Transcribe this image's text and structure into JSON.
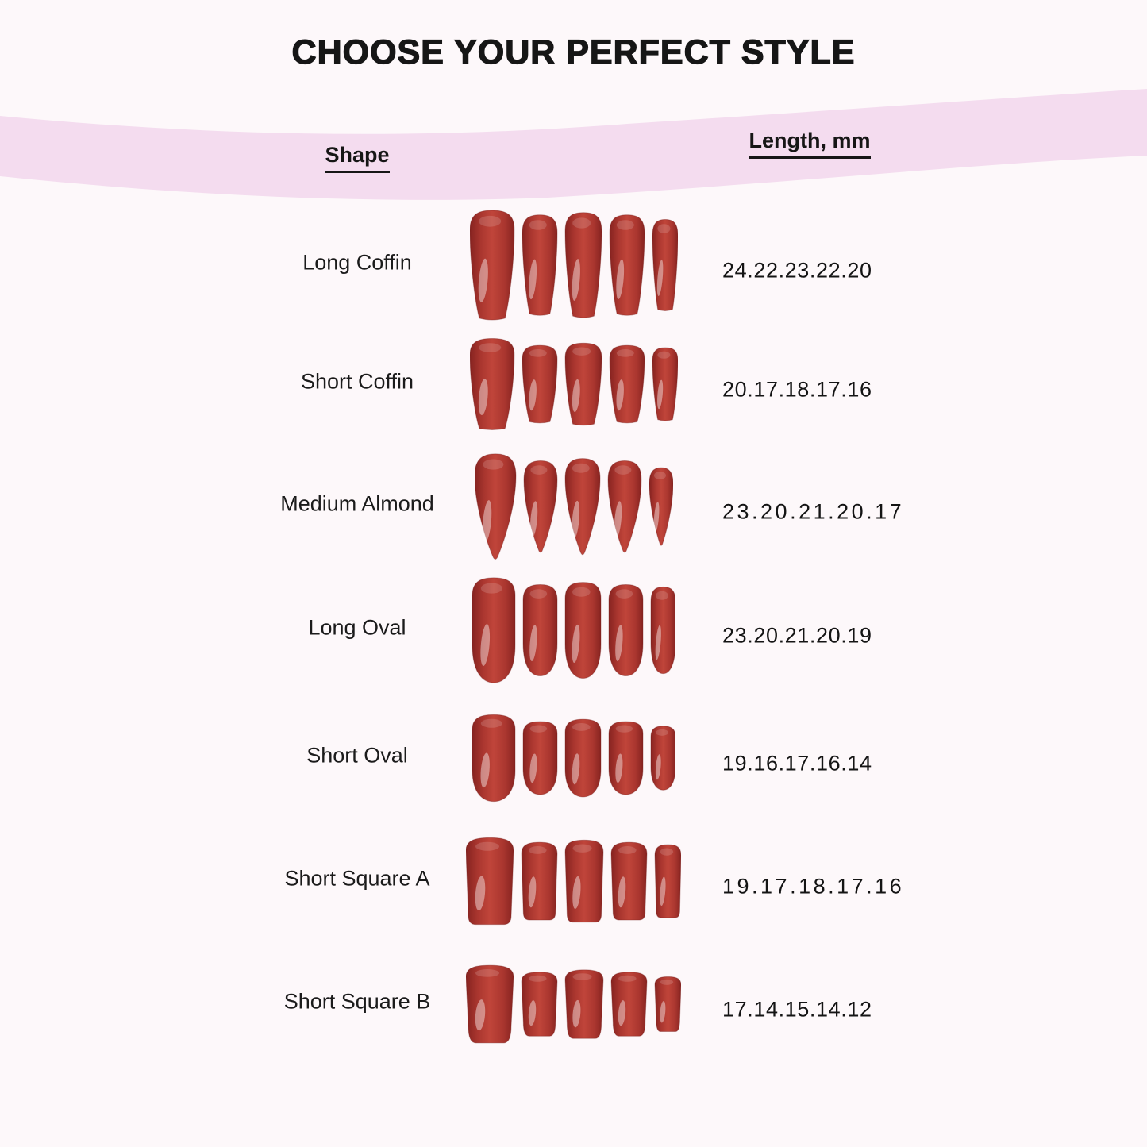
{
  "chart_data": {
    "type": "table",
    "title": "CHOOSE YOUR PERFECT STYLE",
    "columns": [
      "Shape",
      "Length, mm"
    ],
    "rows": [
      {
        "shape": "Long Coffin",
        "lengths_label": "24.22.23.22.20",
        "lengths_mm": [
          24,
          22,
          23,
          22,
          20
        ],
        "nail_style": "coffin"
      },
      {
        "shape": "Short Coffin",
        "lengths_label": "20.17.18.17.16",
        "lengths_mm": [
          20,
          17,
          18,
          17,
          16
        ],
        "nail_style": "coffin"
      },
      {
        "shape": "Medium Almond",
        "lengths_label": "23.20.21.20.17",
        "lengths_mm": [
          23,
          20,
          21,
          20,
          17
        ],
        "nail_style": "almond"
      },
      {
        "shape": "Long Oval",
        "lengths_label": "23.20.21.20.19",
        "lengths_mm": [
          23,
          20,
          21,
          20,
          19
        ],
        "nail_style": "oval"
      },
      {
        "shape": "Short Oval",
        "lengths_label": "19.16.17.16.14",
        "lengths_mm": [
          19,
          16,
          17,
          16,
          14
        ],
        "nail_style": "oval"
      },
      {
        "shape": "Short Square A",
        "lengths_label": "19.17.18.17.16",
        "lengths_mm": [
          19,
          17,
          18,
          17,
          16
        ],
        "nail_style": "square"
      },
      {
        "shape": "Short Square B",
        "lengths_label": "17.14.15.14.12",
        "lengths_mm": [
          17,
          14,
          15,
          14,
          12
        ],
        "nail_style": "square-round"
      }
    ]
  },
  "colors": {
    "background": "#fdf8fa",
    "ribbon": "#f4dcef",
    "text": "#161616",
    "nail_red": "#aa362f",
    "nail_red_bright": "#c0453a",
    "nail_red_dark": "#862320",
    "nail_outline": "#731d1a",
    "nail_highlight": "#ffffff"
  }
}
